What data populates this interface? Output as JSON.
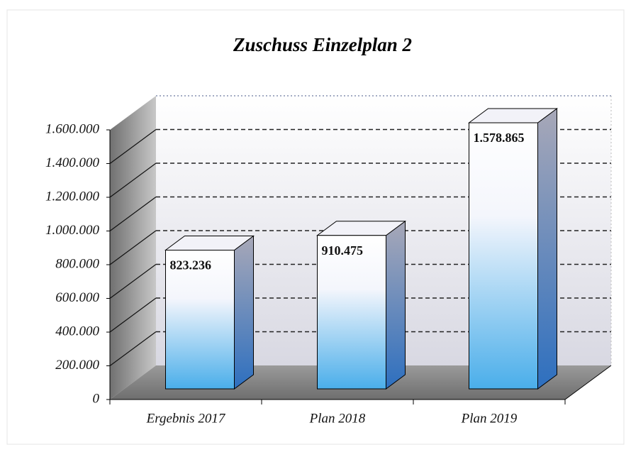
{
  "chart_data": {
    "type": "bar3d",
    "title": "Zuschuss Einzelplan 2",
    "categories": [
      "Ergebnis 2017",
      "Plan 2018",
      "Plan 2019"
    ],
    "values": [
      823236,
      910475,
      1578865
    ],
    "value_labels": [
      "823.236",
      "910.475",
      "1.578.865"
    ],
    "color": "#4aaeea",
    "ylim": [
      0,
      1600000
    ],
    "yticks": [
      0,
      {
        "value": 200000,
        "label": "200.000"
      },
      {
        "value": 400000,
        "label": "400.000"
      },
      {
        "value": 600000,
        "label": "600.000"
      },
      {
        "value": 800000,
        "label": "800.000"
      },
      {
        "value": 1000000,
        "label": "1.000.000"
      },
      {
        "value": 1200000,
        "label": "1.200.000"
      },
      {
        "value": 1400000,
        "label": "1.400.000"
      },
      {
        "value": 1600000,
        "label": "1.600.000"
      }
    ],
    "grid": true
  }
}
